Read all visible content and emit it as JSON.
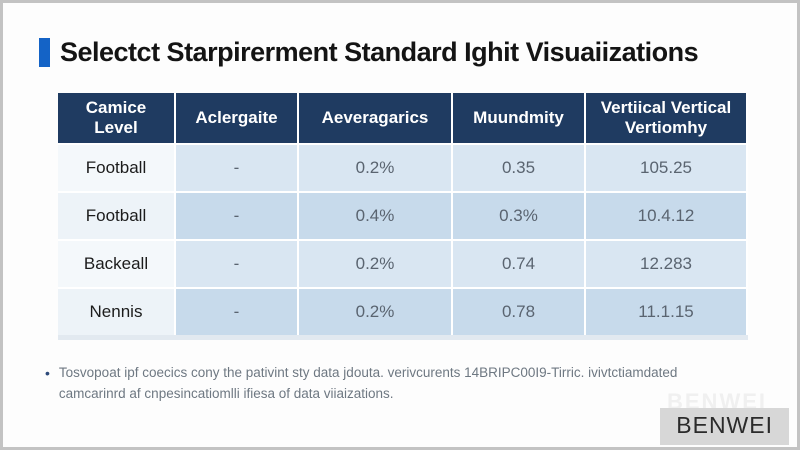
{
  "title": {
    "text": "Selectct Starpirerment Standard Ighit Visuaiizations",
    "accent_color": "#1463c6"
  },
  "table": {
    "header_bg": "#1f3b61",
    "header_text_color": "#ffffff",
    "row_colors": {
      "label_odd": "#f4f8fb",
      "label_even": "#edf3f8",
      "value_odd": "#d9e6f2",
      "value_even": "#c7daeb"
    },
    "headers": [
      {
        "line1": "Camice",
        "line2": "Level"
      },
      {
        "line1": "Aclergaite"
      },
      {
        "line1": "Aeveragarics"
      },
      {
        "line1": "Muundmity"
      },
      {
        "line1": "Vertiical Vertical",
        "line2": "Vertiomhy"
      }
    ],
    "rows": [
      {
        "label": "Football",
        "cells": [
          "-",
          "0.2%",
          "0.35",
          "105.25"
        ]
      },
      {
        "label": "Football",
        "cells": [
          "-",
          "0.4%",
          "0.3%",
          "10.4.12"
        ]
      },
      {
        "label": "Backeall",
        "cells": [
          "-",
          "0.2%",
          "0.74",
          "12.283"
        ]
      },
      {
        "label": "Nennis",
        "cells": [
          "-",
          "0.2%",
          "0.78",
          "11.1.15"
        ]
      }
    ]
  },
  "footnote": {
    "bullet": "•",
    "line1": "Tosvopoat ipf coecics cony the pativint sty data jdouta. verivcurents 14BRIPC00I9-Tirric. ivivtctiamdated",
    "line2": "camcarinrd af cnpesincatiomlli ifiesa of data viiaizations."
  },
  "watermark": {
    "ghost_text": "BENWEI",
    "text": "BENWEI"
  }
}
